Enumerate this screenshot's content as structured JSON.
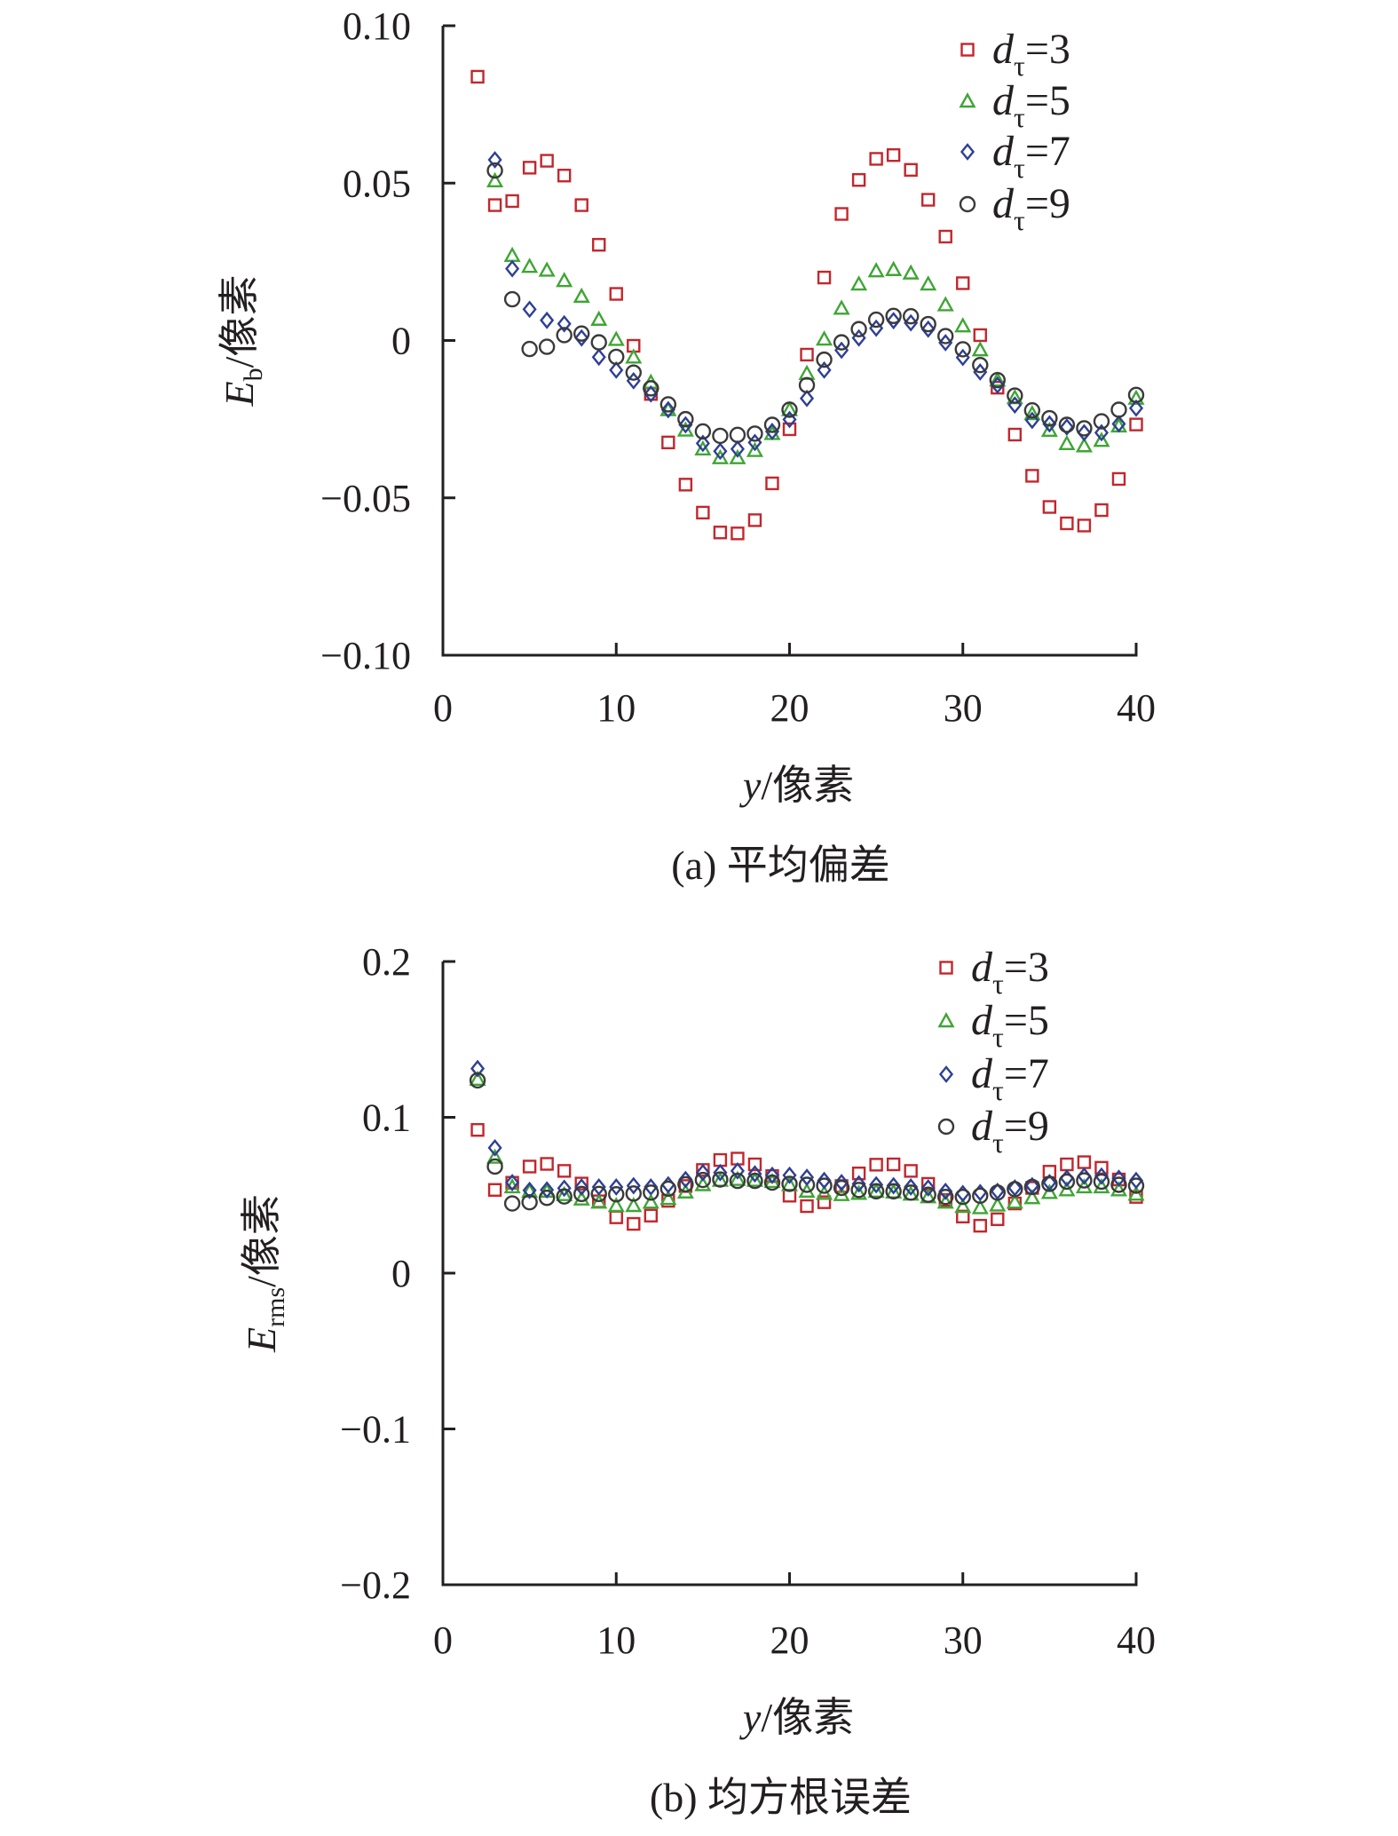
{
  "colors": {
    "d3": "#c1272d",
    "d5": "#3fa535",
    "d7": "#2e3f95",
    "d9": "#3a3a3a",
    "axis": "#231f20"
  },
  "chart_data": [
    {
      "type": "scatter",
      "caption": "(a) 平均偏差",
      "xlabel": {
        "italic": "y",
        "rest": "/像素"
      },
      "ylabel": {
        "main": "E",
        "sub": "b",
        "rest": "/像素"
      },
      "xlim": [
        0,
        40
      ],
      "ylim": [
        -0.1,
        0.1
      ],
      "xticks": [
        0,
        10,
        20,
        30,
        40
      ],
      "xtick_labels": [
        "0",
        "10",
        "20",
        "30",
        "40"
      ],
      "yticks": [
        0.1,
        0.05,
        0,
        -0.05,
        -0.1
      ],
      "ytick_labels": [
        "0.10",
        "0.05",
        "0",
        "−0.05",
        "−0.10"
      ],
      "legend_position": "top-right",
      "grid": false,
      "series": [
        {
          "name": "dτ=3",
          "d": "d",
          "sub": "τ",
          "eq": "=3",
          "marker": "square",
          "color_key": "d3",
          "x": [
            2,
            3,
            4,
            5,
            6,
            7,
            8,
            9,
            10,
            11,
            12,
            13,
            14,
            15,
            16,
            17,
            18,
            19,
            20,
            21,
            22,
            23,
            24,
            25,
            26,
            27,
            28,
            29,
            30,
            31,
            32,
            33,
            34,
            35,
            36,
            37,
            38,
            39,
            40
          ],
          "y": [
            0.0838,
            0.043,
            0.0443,
            0.0549,
            0.0571,
            0.0524,
            0.043,
            0.0304,
            0.0148,
            -0.0017,
            -0.017,
            -0.0324,
            -0.0458,
            -0.0547,
            -0.061,
            -0.0613,
            -0.0571,
            -0.0454,
            -0.0282,
            -0.0045,
            0.02,
            0.0402,
            0.051,
            0.0577,
            0.0589,
            0.0542,
            0.0447,
            0.033,
            0.0182,
            0.0017,
            -0.015,
            -0.0299,
            -0.043,
            -0.0529,
            -0.0581,
            -0.0588,
            -0.0539,
            -0.044,
            -0.0267
          ]
        },
        {
          "name": "dτ=5",
          "d": "d",
          "sub": "τ",
          "eq": "=5",
          "marker": "triangle",
          "color_key": "d5",
          "x": [
            3,
            4,
            5,
            6,
            7,
            8,
            9,
            10,
            11,
            12,
            13,
            14,
            15,
            16,
            17,
            18,
            19,
            20,
            21,
            22,
            23,
            24,
            25,
            26,
            27,
            28,
            29,
            30,
            31,
            32,
            33,
            34,
            35,
            36,
            37,
            38,
            39,
            40
          ],
          "y": [
            0.0507,
            0.027,
            0.0235,
            0.0223,
            0.019,
            0.014,
            0.0067,
            0.0003,
            -0.0053,
            -0.0133,
            -0.022,
            -0.0285,
            -0.0345,
            -0.0373,
            -0.0373,
            -0.035,
            -0.0296,
            -0.022,
            -0.0105,
            0.0004,
            0.0102,
            0.0179,
            0.0221,
            0.0225,
            0.0214,
            0.0179,
            0.0113,
            0.0046,
            -0.003,
            -0.0126,
            -0.0182,
            -0.0233,
            -0.0286,
            -0.0328,
            -0.0335,
            -0.0318,
            -0.0272,
            -0.0184
          ]
        },
        {
          "name": "dτ=7",
          "d": "d",
          "sub": "τ",
          "eq": "=7",
          "marker": "diamond",
          "color_key": "d7",
          "x": [
            3,
            4,
            5,
            6,
            7,
            8,
            9,
            10,
            11,
            12,
            13,
            14,
            15,
            16,
            17,
            18,
            19,
            20,
            21,
            22,
            23,
            24,
            25,
            26,
            27,
            28,
            29,
            30,
            31,
            32,
            33,
            34,
            35,
            36,
            37,
            38,
            39,
            40
          ],
          "y": [
            0.0574,
            0.0228,
            0.0099,
            0.0064,
            0.0053,
            0.0008,
            -0.0053,
            -0.0094,
            -0.0128,
            -0.017,
            -0.022,
            -0.0268,
            -0.0327,
            -0.0352,
            -0.0345,
            -0.0324,
            -0.0289,
            -0.0251,
            -0.0184,
            -0.0094,
            -0.0031,
            0.0008,
            0.0039,
            0.0063,
            0.0056,
            0.0036,
            -0.0007,
            -0.0054,
            -0.01,
            -0.0142,
            -0.0205,
            -0.0254,
            -0.0265,
            -0.0275,
            -0.0293,
            -0.0293,
            -0.0265,
            -0.0215
          ]
        },
        {
          "name": "dτ=9",
          "d": "d",
          "sub": "τ",
          "eq": "=9",
          "marker": "circle",
          "color_key": "d9",
          "x": [
            3,
            4,
            5,
            6,
            7,
            8,
            9,
            10,
            11,
            12,
            13,
            14,
            15,
            16,
            17,
            18,
            19,
            20,
            21,
            22,
            23,
            24,
            25,
            26,
            27,
            28,
            29,
            30,
            31,
            32,
            33,
            34,
            35,
            36,
            37,
            38,
            39,
            40
          ],
          "y": [
            0.054,
            0.0131,
            -0.0027,
            -0.002,
            0.0017,
            0.0022,
            -0.0006,
            -0.0052,
            -0.0102,
            -0.0152,
            -0.0203,
            -0.025,
            -0.0289,
            -0.0303,
            -0.03,
            -0.0296,
            -0.0268,
            -0.022,
            -0.0142,
            -0.0061,
            -0.0006,
            0.0036,
            0.0066,
            0.0078,
            0.0077,
            0.0052,
            0.0014,
            -0.0028,
            -0.0078,
            -0.0126,
            -0.0175,
            -0.0222,
            -0.0247,
            -0.0268,
            -0.0279,
            -0.0257,
            -0.022,
            -0.0173
          ]
        }
      ]
    },
    {
      "type": "scatter",
      "caption": "(b) 均方根误差",
      "xlabel": {
        "italic": "y",
        "rest": "/像素"
      },
      "ylabel": {
        "main": "E",
        "sub": "rms",
        "rest": "/像素"
      },
      "xlim": [
        0,
        40
      ],
      "ylim": [
        -0.2,
        0.2
      ],
      "xticks": [
        0,
        10,
        20,
        30,
        40
      ],
      "xtick_labels": [
        "0",
        "10",
        "20",
        "30",
        "40"
      ],
      "yticks": [
        0.2,
        0.1,
        0,
        -0.1,
        -0.2
      ],
      "ytick_labels": [
        "0.2",
        "0.1",
        "0",
        "−0.1",
        "−0.2"
      ],
      "legend_position": "top-right",
      "grid": false,
      "series": [
        {
          "name": "dτ=3",
          "d": "d",
          "sub": "τ",
          "eq": "=3",
          "marker": "square",
          "color_key": "d3",
          "x": [
            2,
            3,
            4,
            5,
            6,
            7,
            8,
            9,
            10,
            11,
            12,
            13,
            14,
            15,
            16,
            17,
            18,
            19,
            20,
            21,
            22,
            23,
            24,
            25,
            26,
            27,
            28,
            29,
            30,
            31,
            32,
            33,
            34,
            35,
            36,
            37,
            38,
            39,
            40
          ],
          "y": [
            0.0919,
            0.0534,
            0.058,
            0.0684,
            0.0701,
            0.0656,
            0.0575,
            0.0461,
            0.0358,
            0.0316,
            0.0369,
            0.0464,
            0.0559,
            0.0662,
            0.0726,
            0.0735,
            0.0698,
            0.0623,
            0.0497,
            0.043,
            0.0455,
            0.0559,
            0.064,
            0.0696,
            0.0698,
            0.0656,
            0.0573,
            0.0469,
            0.0363,
            0.0304,
            0.0346,
            0.0447,
            0.0547,
            0.0651,
            0.0698,
            0.0712,
            0.0676,
            0.0601,
            0.0489
          ]
        },
        {
          "name": "dτ=5",
          "d": "d",
          "sub": "τ",
          "eq": "=5",
          "marker": "triangle",
          "color_key": "d5",
          "x": [
            2,
            3,
            4,
            5,
            6,
            7,
            8,
            9,
            10,
            11,
            12,
            13,
            14,
            15,
            16,
            17,
            18,
            19,
            20,
            21,
            22,
            23,
            24,
            25,
            26,
            27,
            28,
            29,
            30,
            31,
            32,
            33,
            34,
            35,
            36,
            37,
            38,
            39,
            40
          ],
          "y": [
            0.1243,
            0.0743,
            0.0553,
            0.0525,
            0.0525,
            0.0503,
            0.0475,
            0.0455,
            0.0433,
            0.0433,
            0.0455,
            0.0478,
            0.052,
            0.0567,
            0.0595,
            0.0601,
            0.0595,
            0.0587,
            0.0567,
            0.0525,
            0.0511,
            0.0503,
            0.0511,
            0.0525,
            0.052,
            0.0506,
            0.0489,
            0.0455,
            0.0427,
            0.0419,
            0.0436,
            0.0455,
            0.0483,
            0.0517,
            0.0534,
            0.0553,
            0.0553,
            0.0534,
            0.0506
          ]
        },
        {
          "name": "dτ=7",
          "d": "d",
          "sub": "τ",
          "eq": "=7",
          "marker": "diamond",
          "color_key": "d7",
          "x": [
            2,
            3,
            4,
            5,
            6,
            7,
            8,
            9,
            10,
            11,
            12,
            13,
            14,
            15,
            16,
            17,
            18,
            19,
            20,
            21,
            22,
            23,
            24,
            25,
            26,
            27,
            28,
            29,
            30,
            31,
            32,
            33,
            34,
            35,
            36,
            37,
            38,
            39,
            40
          ],
          "y": [
            0.1313,
            0.0804,
            0.0581,
            0.0531,
            0.0534,
            0.0545,
            0.0553,
            0.0553,
            0.0553,
            0.0561,
            0.0553,
            0.0567,
            0.0601,
            0.0645,
            0.0645,
            0.0656,
            0.0637,
            0.0628,
            0.0628,
            0.0615,
            0.0595,
            0.0581,
            0.0573,
            0.0567,
            0.0561,
            0.0553,
            0.0547,
            0.0525,
            0.0511,
            0.0517,
            0.0525,
            0.0547,
            0.0561,
            0.0581,
            0.0609,
            0.0623,
            0.0623,
            0.0609,
            0.0595
          ]
        },
        {
          "name": "dτ=9",
          "d": "d",
          "sub": "τ",
          "eq": "=9",
          "marker": "circle",
          "color_key": "d9",
          "x": [
            2,
            3,
            4,
            5,
            6,
            7,
            8,
            9,
            10,
            11,
            12,
            13,
            14,
            15,
            16,
            17,
            18,
            19,
            20,
            21,
            22,
            23,
            24,
            25,
            26,
            27,
            28,
            29,
            30,
            31,
            32,
            33,
            34,
            35,
            36,
            37,
            38,
            39,
            40
          ],
          "y": [
            0.1237,
            0.0684,
            0.0447,
            0.0455,
            0.0483,
            0.0492,
            0.0508,
            0.0508,
            0.0506,
            0.0511,
            0.0517,
            0.0542,
            0.057,
            0.0598,
            0.0601,
            0.0592,
            0.0592,
            0.0581,
            0.0573,
            0.0567,
            0.0561,
            0.0547,
            0.0534,
            0.0525,
            0.0525,
            0.0517,
            0.0503,
            0.0489,
            0.0489,
            0.0497,
            0.0517,
            0.0539,
            0.0553,
            0.0573,
            0.0587,
            0.0595,
            0.0587,
            0.0567,
            0.0561
          ]
        }
      ]
    }
  ]
}
